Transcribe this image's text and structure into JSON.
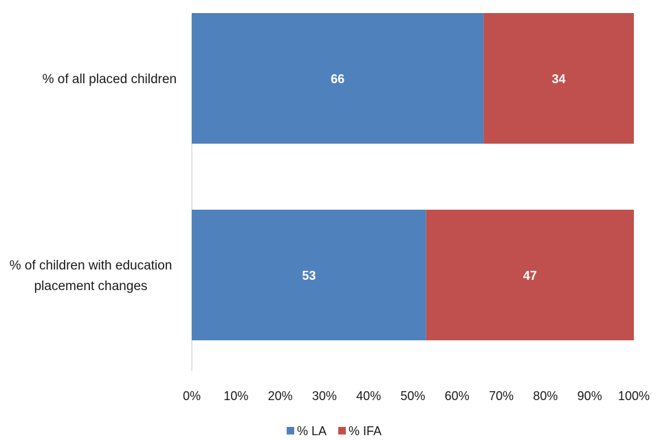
{
  "chart_data": {
    "type": "bar",
    "orientation": "horizontal",
    "stacked": true,
    "categories": [
      [
        "% of all placed children"
      ],
      [
        "% of children with education",
        "placement changes"
      ]
    ],
    "series": [
      {
        "name": "% LA",
        "values": [
          66,
          53
        ],
        "color": "#4f81bd"
      },
      {
        "name": "% IFA",
        "values": [
          34,
          47
        ],
        "color": "#c0504d"
      }
    ],
    "xlim": [
      0,
      100
    ],
    "xticks": [
      0,
      10,
      20,
      30,
      40,
      50,
      60,
      70,
      80,
      90,
      100
    ],
    "xtick_labels": [
      "0%",
      "10%",
      "20%",
      "30%",
      "40%",
      "50%",
      "60%",
      "70%",
      "80%",
      "90%",
      "100%"
    ],
    "grid": false,
    "legend_position": "bottom",
    "title": "",
    "xlabel": "",
    "ylabel": ""
  }
}
